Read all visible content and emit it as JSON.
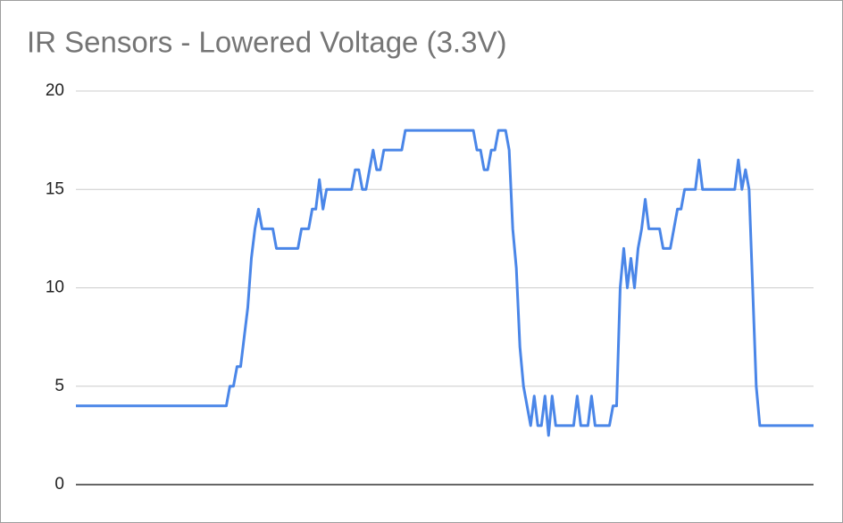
{
  "chart_data": {
    "type": "line",
    "title": "IR Sensors - Lowered Voltage (3.3V)",
    "series": [
      {
        "color": "#4a86e8",
        "values": [
          4,
          4,
          4,
          4,
          4,
          4,
          4,
          4,
          4,
          4,
          4,
          4,
          4,
          4,
          4,
          4,
          4,
          4,
          4,
          4,
          4,
          4,
          4,
          4,
          4,
          4,
          4,
          4,
          4,
          4,
          4,
          4,
          4,
          4,
          4,
          4,
          4,
          4,
          4,
          4,
          4,
          4,
          4,
          5,
          5,
          6,
          6,
          7.5,
          9,
          11.5,
          13,
          14,
          13,
          13,
          13,
          13,
          12,
          12,
          12,
          12,
          12,
          12,
          12,
          13,
          13,
          13,
          14,
          14,
          15.5,
          14,
          15,
          15,
          15,
          15,
          15,
          15,
          15,
          15,
          16,
          16,
          15,
          15,
          16,
          17,
          16,
          16,
          17,
          17,
          17,
          17,
          17,
          17,
          18,
          18,
          18,
          18,
          18,
          18,
          18,
          18,
          18,
          18,
          18,
          18,
          18,
          18,
          18,
          18,
          18,
          18,
          18,
          18,
          17,
          17,
          16,
          16,
          17,
          17,
          18,
          18,
          18,
          17,
          13,
          11,
          7,
          5,
          4,
          3,
          4.5,
          3,
          3,
          4.5,
          2.5,
          4.5,
          3,
          3,
          3,
          3,
          3,
          3,
          4.5,
          3,
          3,
          3,
          4.5,
          3,
          3,
          3,
          3,
          3,
          4,
          4,
          10,
          12,
          10,
          11.5,
          10,
          12,
          13,
          14.5,
          13,
          13,
          13,
          13,
          12,
          12,
          12,
          13,
          14,
          14,
          15,
          15,
          15,
          15,
          16.5,
          15,
          15,
          15,
          15,
          15,
          15,
          15,
          15,
          15,
          15,
          16.5,
          15,
          16,
          15,
          10,
          5,
          3,
          3,
          3,
          3,
          3,
          3,
          3,
          3,
          3,
          3,
          3,
          3,
          3,
          3,
          3,
          3
        ]
      }
    ],
    "ylim": [
      0,
      20
    ],
    "yticks": [
      0,
      5,
      10,
      15,
      20
    ],
    "grid": true
  }
}
